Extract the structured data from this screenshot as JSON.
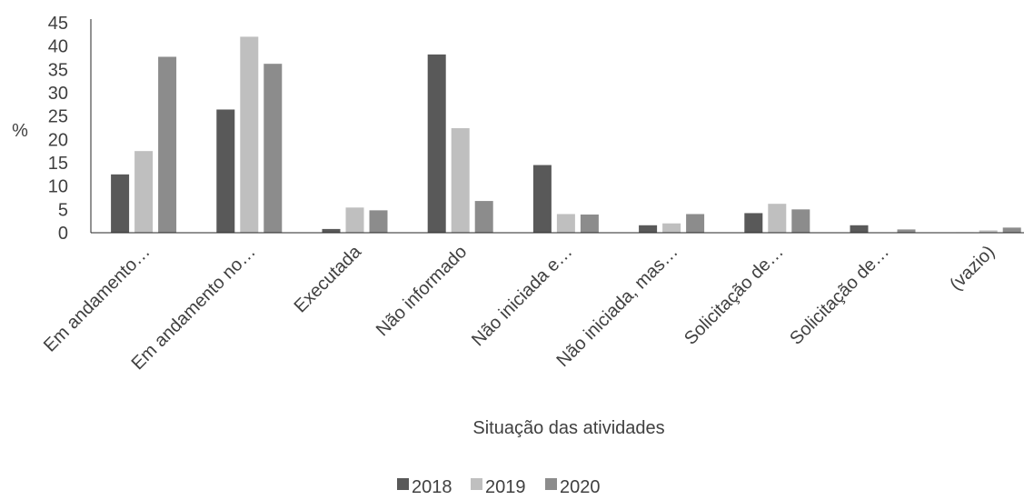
{
  "chart_data": {
    "type": "bar",
    "xlabel": "Situação das atividades",
    "ylabel": "%",
    "ylim": [
      0,
      45
    ],
    "yticks": [
      0,
      5,
      10,
      15,
      20,
      25,
      30,
      35,
      40,
      45
    ],
    "grid": false,
    "legend_position": "bottom",
    "categories": [
      "Em andamento…",
      "Em andamento no…",
      "Executada",
      "Não informado",
      "Não iniciada e…",
      "Não iniciada, mas…",
      "Solicitação de…",
      "Solicitação de…",
      "(vazio)"
    ],
    "series": [
      {
        "name": "2018",
        "color": "#595959",
        "values": [
          12.5,
          26.4,
          0.8,
          38.2,
          14.5,
          1.6,
          4.2,
          1.6,
          0.1
        ]
      },
      {
        "name": "2019",
        "color": "#bfbfbf",
        "values": [
          17.5,
          42.0,
          5.4,
          22.4,
          4.0,
          2.0,
          6.2,
          0.0,
          0.5
        ]
      },
      {
        "name": "2020",
        "color": "#8c8c8c",
        "values": [
          37.7,
          36.2,
          4.8,
          6.8,
          3.9,
          4.0,
          5.0,
          0.7,
          1.1
        ]
      }
    ]
  }
}
